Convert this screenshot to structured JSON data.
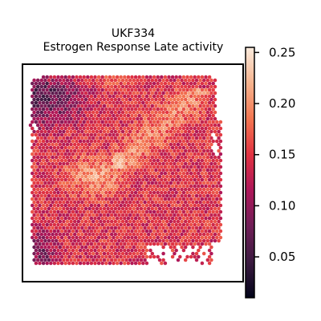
{
  "chart_data": {
    "type": "heatmap",
    "plot_kind": "spatial spot map (hexagonal spots, gene-set activity score)",
    "title_line1": "UKF334",
    "title_line2": "Estrogen Response Late activity",
    "xlabel": "",
    "ylabel": "",
    "axes_ticks_visible": false,
    "grid": false,
    "colormap": "rocket",
    "colormap_stops": [
      "#03051a",
      "#3b1a40",
      "#701f57",
      "#ad1759",
      "#e13342",
      "#f37651",
      "#f6b48f",
      "#faebdd"
    ],
    "colorbar": {
      "position": "right",
      "range": [
        0.01,
        0.255
      ],
      "ticks": [
        0.05,
        0.1,
        0.15,
        0.2,
        0.25
      ],
      "tick_labels": [
        "0.05",
        "0.10",
        "0.15",
        "0.20",
        "0.25"
      ]
    },
    "score_summary": {
      "low_regions": [
        "upper-left",
        "left edge",
        "bottom-left corner"
      ],
      "mid_regions": [
        "top band",
        "right edge"
      ],
      "high_regions": [
        "center-left",
        "center-right diagonal band"
      ],
      "typical_value": 0.16
    }
  }
}
